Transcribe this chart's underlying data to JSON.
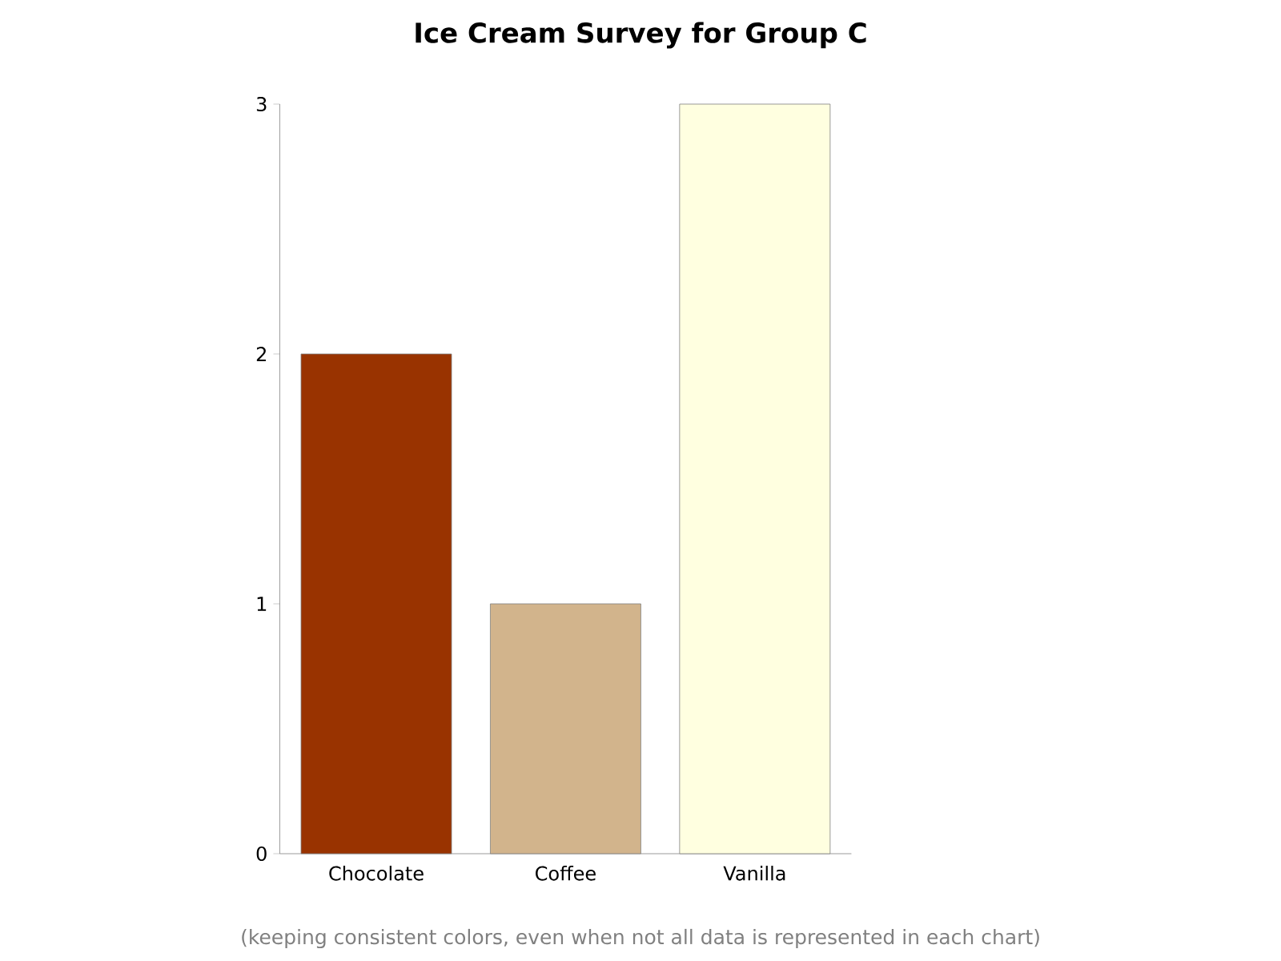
{
  "chart_data": {
    "type": "bar",
    "title": "Ice Cream Survey for Group C",
    "categories": [
      "Chocolate",
      "Coffee",
      "Vanilla"
    ],
    "values": [
      2,
      1,
      3
    ],
    "colors": [
      "#993300",
      "#d2b48c",
      "#ffffe0"
    ],
    "ylim": [
      0,
      3
    ],
    "yticks": [
      0,
      1,
      2,
      3
    ],
    "annotations": [
      "(keeping consistent colors, even when not all data is represented in each chart)"
    ]
  }
}
